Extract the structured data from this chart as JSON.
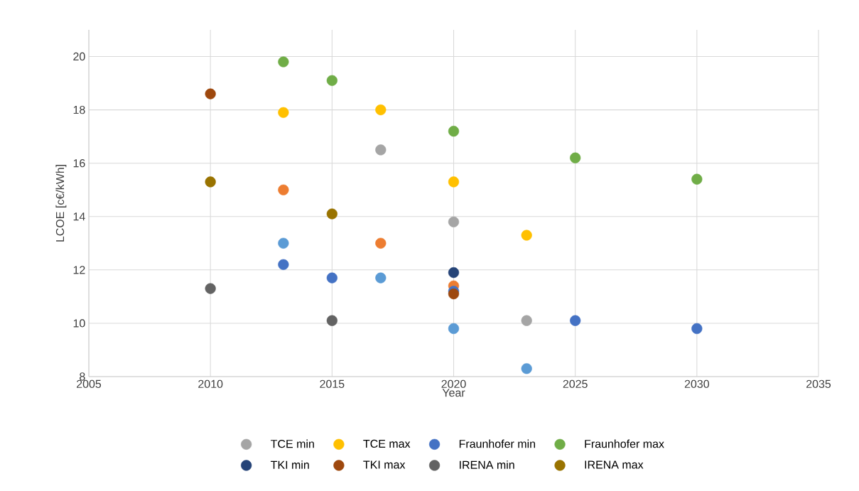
{
  "chart_data": {
    "type": "scatter",
    "xlabel": "Year",
    "ylabel": "LCOE [c€/kWh]",
    "xlim": [
      2005,
      2035
    ],
    "xticks": [
      2005,
      2010,
      2015,
      2020,
      2025,
      2030,
      2035
    ],
    "ylim": [
      8,
      21
    ],
    "yticks": [
      8,
      10,
      12,
      14,
      16,
      18,
      20
    ],
    "grid": true,
    "legend": "bottom",
    "series": [
      {
        "color": "#5b9bd5",
        "x": [
          2013,
          2017,
          2020,
          2023
        ],
        "values": [
          13.0,
          11.7,
          9.8,
          8.3
        ]
      },
      {
        "color": "#ed7d31",
        "x": [
          2013,
          2017,
          2020
        ],
        "values": [
          15.0,
          13.0,
          11.4
        ]
      },
      {
        "name": "TCE min",
        "color": "#a5a5a5",
        "x": [
          2017,
          2020,
          2023
        ],
        "values": [
          16.5,
          13.8,
          10.1
        ]
      },
      {
        "name": "TCE max",
        "color": "#ffc000",
        "x": [
          2013,
          2017,
          2020,
          2023
        ],
        "values": [
          17.9,
          18.0,
          15.3,
          13.3
        ]
      },
      {
        "name": "Fraunhofer min",
        "color": "#4472c4",
        "x": [
          2013,
          2015,
          2020,
          2025,
          2030
        ],
        "values": [
          12.2,
          11.7,
          11.2,
          10.1,
          9.8
        ]
      },
      {
        "name": "Fraunhofer max",
        "color": "#70ad47",
        "x": [
          2013,
          2015,
          2020,
          2025,
          2030
        ],
        "values": [
          19.8,
          19.1,
          17.2,
          16.2,
          15.4
        ]
      },
      {
        "name": "TKI min",
        "color": "#264478",
        "x": [
          2020
        ],
        "values": [
          11.9
        ]
      },
      {
        "name": "TKI max",
        "color": "#9e480e",
        "x": [
          2010,
          2020
        ],
        "values": [
          18.6,
          11.1
        ]
      },
      {
        "name": "IRENA min",
        "color": "#636363",
        "x": [
          2010,
          2015
        ],
        "values": [
          11.3,
          10.1
        ]
      },
      {
        "name": "IRENA max",
        "color": "#997300",
        "x": [
          2010,
          2015
        ],
        "values": [
          15.3,
          14.1
        ]
      }
    ]
  }
}
